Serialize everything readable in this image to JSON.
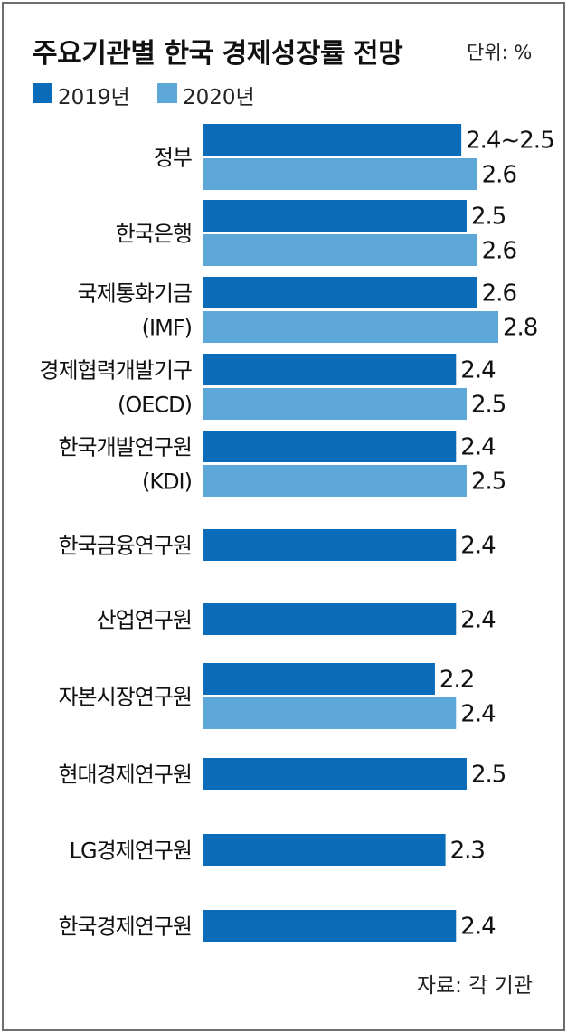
{
  "title": "주요기관별 한국 경제성장률 전망",
  "unit": "단위: %",
  "source": "자료: 각 기관",
  "legend": [
    {
      "name": "2019년",
      "color": "#0a6cb8"
    },
    {
      "name": "2020년",
      "color": "#5da8d9"
    }
  ],
  "chart_data": {
    "type": "bar",
    "orientation": "horizontal",
    "title": "주요기관별 한국 경제성장률 전망",
    "unit": "%",
    "categories": [
      [
        "정부"
      ],
      [
        "한국은행"
      ],
      [
        "국제통화기금",
        "(IMF)"
      ],
      [
        "경제협력개발기구",
        "(OECD)"
      ],
      [
        "한국개발연구원",
        "(KDI)"
      ],
      [
        "한국금융연구원"
      ],
      [
        "산업연구원"
      ],
      [
        "자본시장연구원"
      ],
      [
        "현대경제연구원"
      ],
      [
        "LG경제연구원"
      ],
      [
        "한국경제연구원"
      ]
    ],
    "series": [
      {
        "name": "2019년",
        "color": "#0a6cb8",
        "values": [
          2.45,
          2.5,
          2.6,
          2.4,
          2.4,
          2.4,
          2.4,
          2.2,
          2.5,
          2.3,
          2.4
        ],
        "labels": [
          "2.4~2.5",
          "2.5",
          "2.6",
          "2.4",
          "2.4",
          "2.4",
          "2.4",
          "2.2",
          "2.5",
          "2.3",
          "2.4"
        ]
      },
      {
        "name": "2020년",
        "color": "#5da8d9",
        "values": [
          2.6,
          2.6,
          2.8,
          2.5,
          2.5,
          null,
          null,
          2.4,
          null,
          null,
          null
        ],
        "labels": [
          "2.6",
          "2.6",
          "2.8",
          "2.5",
          "2.5",
          null,
          null,
          "2.4",
          null,
          null,
          null
        ]
      }
    ],
    "grid": false,
    "legend_position": "top-left"
  }
}
